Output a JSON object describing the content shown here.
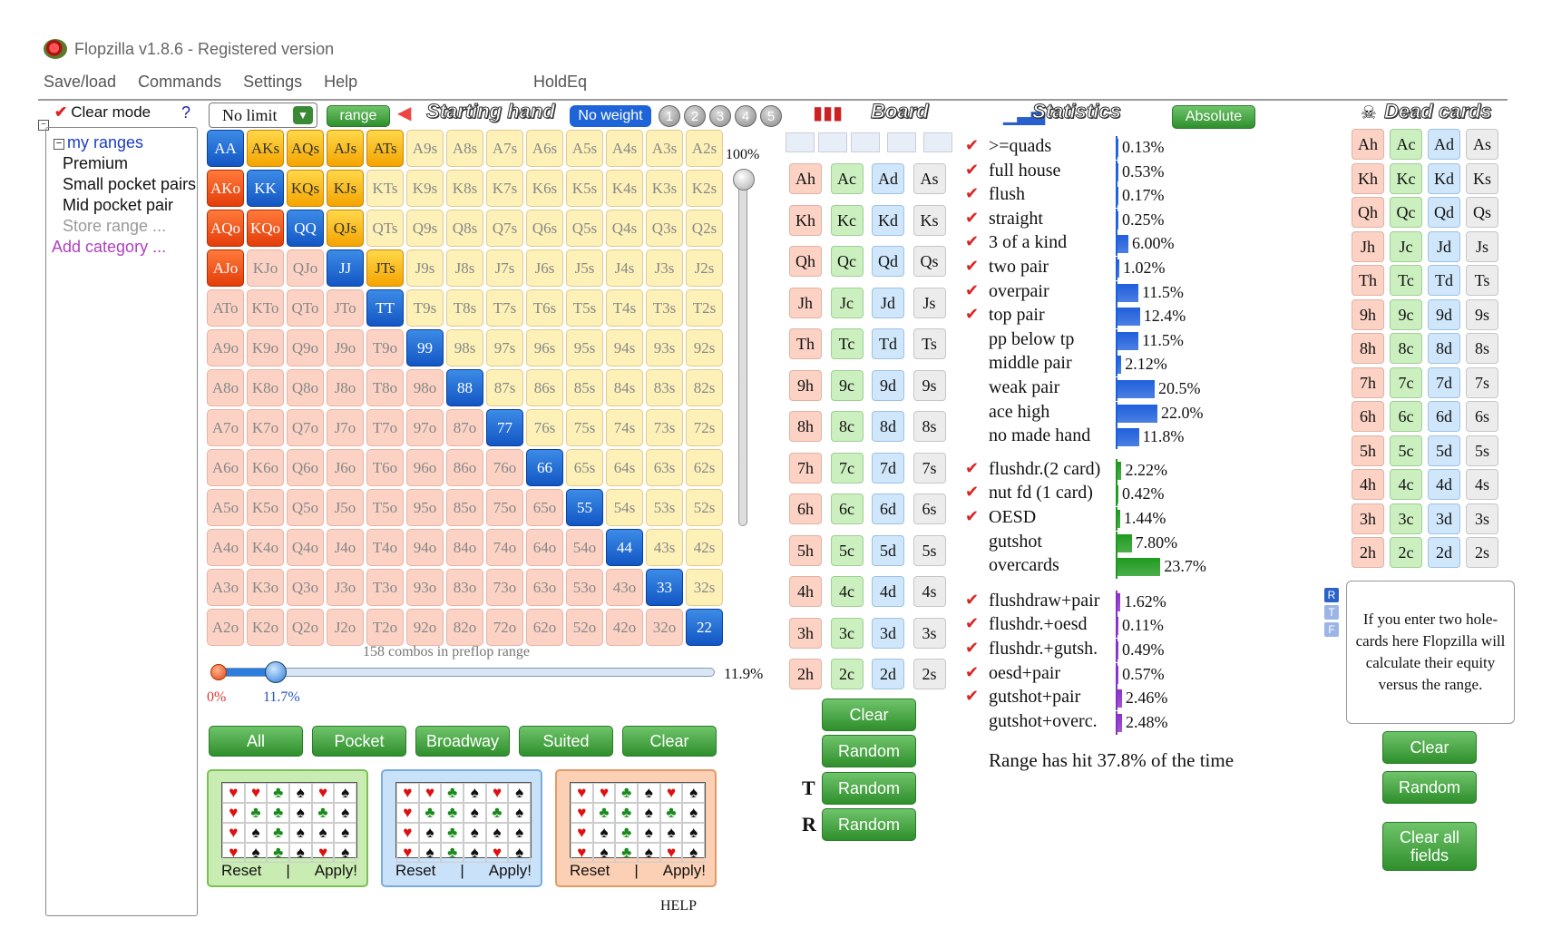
{
  "app": {
    "title": "Flopzilla v1.8.6 - Registered version"
  },
  "menu": [
    "Save/load",
    "Commands",
    "Settings",
    "Help"
  ],
  "menu_holdeq": "HoldEq",
  "left": {
    "clear_mode": "Clear mode",
    "help": "?",
    "root": "my ranges",
    "items": [
      "Premium",
      "Small pocket pairs",
      "Mid pocket pair",
      "Store range ..."
    ],
    "add_category": "Add category ..."
  },
  "toolbar": {
    "limit": "No limit",
    "range_btn": "range",
    "starting_hand_title": "Starting hand",
    "no_weight": "No weight",
    "weights": [
      "1",
      "2",
      "3",
      "4",
      "5"
    ]
  },
  "grid": {
    "ranks": [
      "A",
      "K",
      "Q",
      "J",
      "T",
      "9",
      "8",
      "7",
      "6",
      "5",
      "4",
      "3",
      "2"
    ],
    "selected": [
      "AA",
      "KK",
      "QQ",
      "JJ",
      "TT",
      "99",
      "88",
      "77",
      "66",
      "55",
      "44",
      "33",
      "22",
      "AKs",
      "AQs",
      "AJs",
      "ATs",
      "KQs",
      "KJs",
      "QJs",
      "JTs",
      "AKo",
      "AQo",
      "KQo",
      "AJo"
    ],
    "labels": []
  },
  "weight_slider": {
    "top_label": "100%",
    "level": 1.0
  },
  "range": {
    "combos_label": "158 combos in preflop range",
    "max_label": "11.9%",
    "zero_label": "0%",
    "current_label": "11.7%",
    "fraction": 0.117
  },
  "preset_buttons": [
    "All",
    "Pocket",
    "Broadway",
    "Suited",
    "Clear"
  ],
  "card_boxes": [
    {
      "bg": "#c9ecb3",
      "border": "#7bbf58",
      "reset": "Reset",
      "sep": "|",
      "apply": "Apply!"
    },
    {
      "bg": "#c9e2fa",
      "border": "#79acde",
      "reset": "Reset",
      "sep": "|",
      "apply": "Apply!"
    },
    {
      "bg": "#fcd0b4",
      "border": "#e49a68",
      "reset": "Reset",
      "sep": "|",
      "apply": "Apply!"
    }
  ],
  "mini_suits": [
    "♥",
    "♥",
    "♣",
    "♠",
    "♥",
    "♠",
    "♥",
    "♣",
    "♣",
    "♠",
    "♣",
    "♠",
    "♥",
    "♠",
    "♣",
    "♠",
    "♠",
    "♠",
    "♥",
    "♠",
    "♣",
    "♠",
    "♥",
    "♠"
  ],
  "mini_colors": [
    "red",
    "red",
    "grn",
    "blk",
    "red",
    "blk",
    "red",
    "grn",
    "grn",
    "blk",
    "grn",
    "blk",
    "red",
    "blk",
    "grn",
    "blk",
    "blk",
    "blk",
    "red",
    "blk",
    "grn",
    "blk",
    "red",
    "blk"
  ],
  "help_link": "HELP",
  "board": {
    "title": "Board",
    "cards": [
      "Ah",
      "Ac",
      "Ad",
      "As",
      "Kh",
      "Kc",
      "Kd",
      "Ks",
      "Qh",
      "Qc",
      "Qd",
      "Qs",
      "Jh",
      "Jc",
      "Jd",
      "Js",
      "Th",
      "Tc",
      "Td",
      "Ts",
      "9h",
      "9c",
      "9d",
      "9s",
      "8h",
      "8c",
      "8d",
      "8s",
      "7h",
      "7c",
      "7d",
      "7s",
      "6h",
      "6c",
      "6d",
      "6s",
      "5h",
      "5c",
      "5d",
      "5s",
      "4h",
      "4c",
      "4d",
      "4s",
      "3h",
      "3c",
      "3d",
      "3s",
      "2h",
      "2c",
      "2d",
      "2s"
    ],
    "buttons": {
      "clear": "Clear",
      "random": "Random",
      "random_t": "Random",
      "random_r": "Random",
      "t_glyph": "T",
      "r_glyph": "R"
    }
  },
  "statistics": {
    "title": "Statistics",
    "mode_btn": "Absolute",
    "check": "✔",
    "groups": [
      {
        "color": "#1f5fdc",
        "rows": [
          {
            "label": ">=quads",
            "value": "0.13%",
            "pct": 0.13,
            "checked": true
          },
          {
            "label": "full house",
            "value": "0.53%",
            "pct": 0.53,
            "checked": true
          },
          {
            "label": "flush",
            "value": "0.17%",
            "pct": 0.17,
            "checked": true
          },
          {
            "label": "straight",
            "value": "0.25%",
            "pct": 0.25,
            "checked": true
          },
          {
            "label": "3 of a kind",
            "value": "6.00%",
            "pct": 6.0,
            "checked": true
          },
          {
            "label": "two pair",
            "value": "1.02%",
            "pct": 1.02,
            "checked": true
          },
          {
            "label": "overpair",
            "value": "11.5%",
            "pct": 11.5,
            "checked": true
          },
          {
            "label": "top pair",
            "value": "12.4%",
            "pct": 12.4,
            "checked": true
          },
          {
            "label": "pp below tp",
            "value": "11.5%",
            "pct": 11.5,
            "checked": false
          },
          {
            "label": "middle pair",
            "value": "2.12%",
            "pct": 2.12,
            "checked": false
          },
          {
            "label": "weak pair",
            "value": "20.5%",
            "pct": 20.5,
            "checked": false
          },
          {
            "label": "ace high",
            "value": "22.0%",
            "pct": 22.0,
            "checked": false
          },
          {
            "label": "no made hand",
            "value": "11.8%",
            "pct": 11.8,
            "checked": false
          }
        ]
      },
      {
        "color": "#1f9a1f",
        "rows": [
          {
            "label": "flushdr.(2 card)",
            "value": "2.22%",
            "pct": 2.22,
            "checked": true
          },
          {
            "label": "nut fd (1 card)",
            "value": "0.42%",
            "pct": 0.42,
            "checked": true
          },
          {
            "label": "OESD",
            "value": "1.44%",
            "pct": 1.44,
            "checked": true
          },
          {
            "label": "gutshot",
            "value": "7.80%",
            "pct": 7.8,
            "checked": false
          },
          {
            "label": "overcards",
            "value": "23.7%",
            "pct": 23.7,
            "checked": false
          }
        ]
      },
      {
        "color": "#8a2fc8",
        "rows": [
          {
            "label": "flushdraw+pair",
            "value": "1.62%",
            "pct": 1.62,
            "checked": true
          },
          {
            "label": "flushdr.+oesd",
            "value": "0.11%",
            "pct": 0.11,
            "checked": true
          },
          {
            "label": "flushdr.+gutsh.",
            "value": "0.49%",
            "pct": 0.49,
            "checked": true
          },
          {
            "label": "oesd+pair",
            "value": "0.57%",
            "pct": 0.57,
            "checked": true
          },
          {
            "label": "gutshot+pair",
            "value": "2.46%",
            "pct": 2.46,
            "checked": true
          },
          {
            "label": "gutshot+overc.",
            "value": "2.48%",
            "pct": 2.48,
            "checked": false
          }
        ]
      }
    ],
    "summary": "Range has hit 37.8% of the time"
  },
  "dead": {
    "title": "Dead cards",
    "rtf": [
      "R",
      "T",
      "F"
    ],
    "equity_text": "If you enter two hole-cards here Flopzilla will calculate their equity versus the range.",
    "buttons": {
      "clear": "Clear",
      "random": "Random",
      "clear_all": "Clear all fields"
    }
  }
}
